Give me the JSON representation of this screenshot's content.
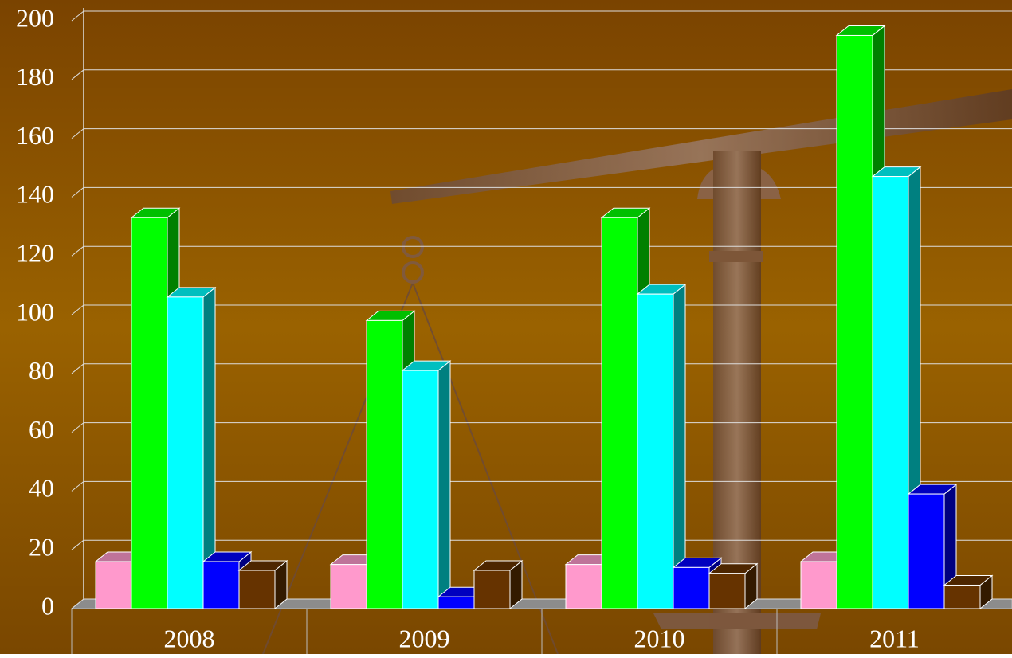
{
  "chart_data": {
    "type": "bar3d",
    "categories": [
      "2008",
      "2009",
      "2010",
      "2011"
    ],
    "series": [
      {
        "color": "#ff99cc",
        "values": [
          16,
          15,
          15,
          16
        ]
      },
      {
        "color": "#00ff00",
        "values": [
          133,
          98,
          133,
          195
        ]
      },
      {
        "color": "#00ffff",
        "values": [
          106,
          81,
          107,
          147
        ]
      },
      {
        "color": "#0000ff",
        "values": [
          16,
          4,
          14,
          39
        ]
      },
      {
        "color": "#663300",
        "values": [
          13,
          13,
          12,
          8
        ]
      }
    ],
    "ylim": [
      0,
      200
    ],
    "yticks": [
      0,
      20,
      40,
      60,
      80,
      100,
      120,
      140,
      160,
      180,
      200
    ],
    "grid": true
  }
}
